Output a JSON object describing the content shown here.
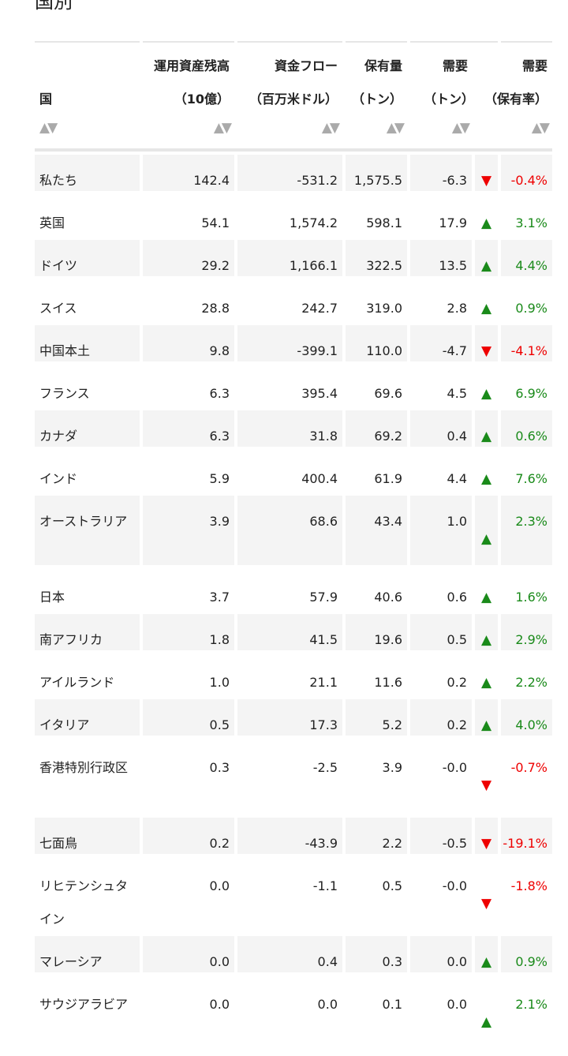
{
  "title": "国別",
  "headers": {
    "country": {
      "line1": "",
      "line2": "国"
    },
    "aum": {
      "line1": "運用資産残高",
      "line2": "（10億）"
    },
    "flows": {
      "line1": "資金フロー",
      "line2": "（百万米ドル）"
    },
    "holdings": {
      "line1": "保有量",
      "line2": "（トン）"
    },
    "demand": {
      "line1": "需要",
      "line2": "（トン）"
    },
    "demand_pct": {
      "line1": "需要",
      "line2": "（保有率）"
    },
    "sort_glyph": "▲▼"
  },
  "colors": {
    "up": "#1a8a1a",
    "down": "#e00000",
    "alt_row": "#f4f4f4"
  },
  "rows": [
    {
      "country": "私たち",
      "aum": "142.4",
      "flows": "-531.2",
      "holdings": "1,575.5",
      "demand": "-6.3",
      "dir": "down",
      "pct": "-0.4%"
    },
    {
      "country": "英国",
      "aum": "54.1",
      "flows": "1,574.2",
      "holdings": "598.1",
      "demand": "17.9",
      "dir": "up",
      "pct": "3.1%"
    },
    {
      "country": "ドイツ",
      "aum": "29.2",
      "flows": "1,166.1",
      "holdings": "322.5",
      "demand": "13.5",
      "dir": "up",
      "pct": "4.4%"
    },
    {
      "country": "スイス",
      "aum": "28.8",
      "flows": "242.7",
      "holdings": "319.0",
      "demand": "2.8",
      "dir": "up",
      "pct": "0.9%"
    },
    {
      "country": "中国本土",
      "aum": "9.8",
      "flows": "-399.1",
      "holdings": "110.0",
      "demand": "-4.7",
      "dir": "down",
      "pct": "-4.1%"
    },
    {
      "country": "フランス",
      "aum": "6.3",
      "flows": "395.4",
      "holdings": "69.6",
      "demand": "4.5",
      "dir": "up",
      "pct": "6.9%"
    },
    {
      "country": "カナダ",
      "aum": "6.3",
      "flows": "31.8",
      "holdings": "69.2",
      "demand": "0.4",
      "dir": "up",
      "pct": "0.6%"
    },
    {
      "country": "インド",
      "aum": "5.9",
      "flows": "400.4",
      "holdings": "61.9",
      "demand": "4.4",
      "dir": "up",
      "pct": "7.6%"
    },
    {
      "country": "オーストラリア",
      "aum": "3.9",
      "flows": "68.6",
      "holdings": "43.4",
      "demand": "1.0",
      "dir": "up",
      "pct": "2.3%"
    },
    {
      "country": "日本",
      "aum": "3.7",
      "flows": "57.9",
      "holdings": "40.6",
      "demand": "0.6",
      "dir": "up",
      "pct": "1.6%"
    },
    {
      "country": "南アフリカ",
      "aum": "1.8",
      "flows": "41.5",
      "holdings": "19.6",
      "demand": "0.5",
      "dir": "up",
      "pct": "2.9%"
    },
    {
      "country": "アイルランド",
      "aum": "1.0",
      "flows": "21.1",
      "holdings": "11.6",
      "demand": "0.2",
      "dir": "up",
      "pct": "2.2%"
    },
    {
      "country": "イタリア",
      "aum": "0.5",
      "flows": "17.3",
      "holdings": "5.2",
      "demand": "0.2",
      "dir": "up",
      "pct": "4.0%"
    },
    {
      "country": "香港特別行政区",
      "aum": "0.3",
      "flows": "-2.5",
      "holdings": "3.9",
      "demand": "-0.0",
      "dir": "down",
      "pct": "-0.7%"
    },
    {
      "country": "七面鳥",
      "aum": "0.2",
      "flows": "-43.9",
      "holdings": "2.2",
      "demand": "-0.5",
      "dir": "down",
      "pct": "-19.1%"
    },
    {
      "country": "リヒテンシュタイン",
      "aum": "0.0",
      "flows": "-1.1",
      "holdings": "0.5",
      "demand": "-0.0",
      "dir": "down",
      "pct": "-1.8%"
    },
    {
      "country": "マレーシア",
      "aum": "0.0",
      "flows": "0.4",
      "holdings": "0.3",
      "demand": "0.0",
      "dir": "up",
      "pct": "0.9%"
    },
    {
      "country": "サウジアラビア",
      "aum": "0.0",
      "flows": "0.0",
      "holdings": "0.1",
      "demand": "0.0",
      "dir": "up",
      "pct": "2.1%"
    }
  ]
}
